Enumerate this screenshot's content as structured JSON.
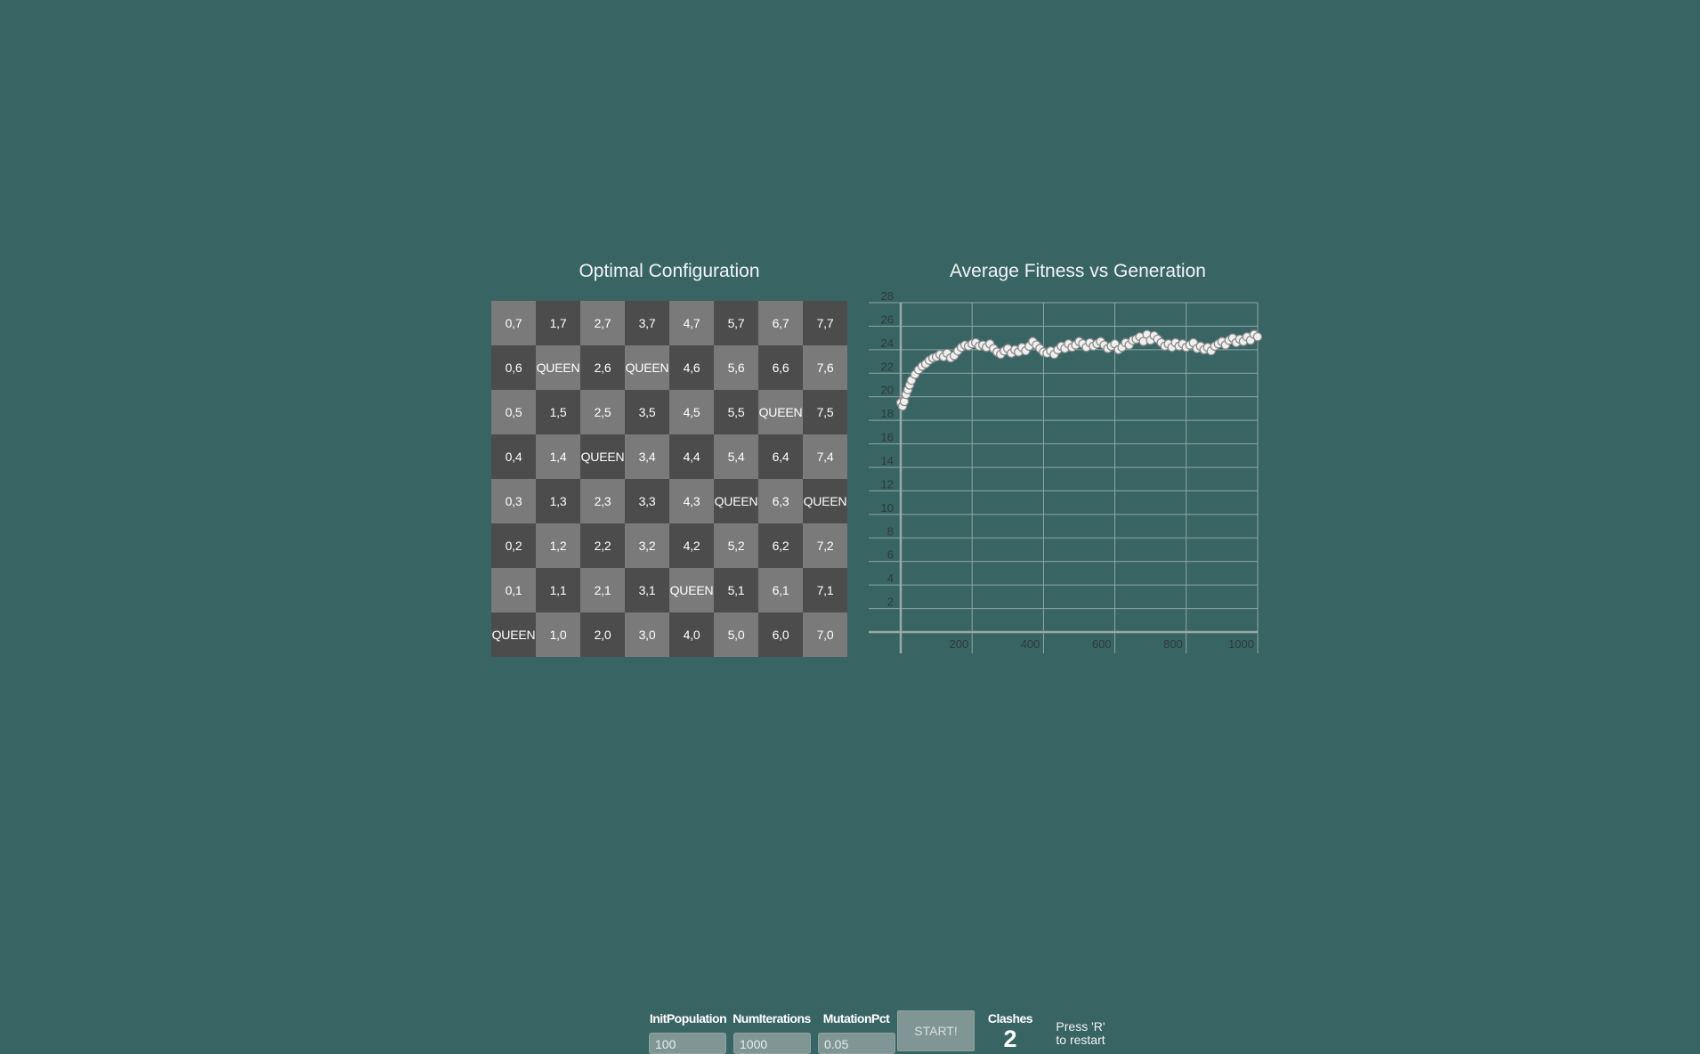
{
  "board": {
    "title": "Optimal Configuration",
    "rows": [
      [
        "0,7",
        "1,7",
        "2,7",
        "3,7",
        "4,7",
        "5,7",
        "6,7",
        "7,7"
      ],
      [
        "0,6",
        "QUEEN",
        "2,6",
        "QUEEN",
        "4,6",
        "5,6",
        "6,6",
        "7,6"
      ],
      [
        "0,5",
        "1,5",
        "2,5",
        "3,5",
        "4,5",
        "5,5",
        "QUEEN",
        "7,5"
      ],
      [
        "0,4",
        "1,4",
        "QUEEN",
        "3,4",
        "4,4",
        "5,4",
        "6,4",
        "7,4"
      ],
      [
        "0,3",
        "1,3",
        "2,3",
        "3,3",
        "4,3",
        "QUEEN",
        "6,3",
        "QUEEN"
      ],
      [
        "0,2",
        "1,2",
        "2,2",
        "3,2",
        "4,2",
        "5,2",
        "6,2",
        "7,2"
      ],
      [
        "0,1",
        "1,1",
        "2,1",
        "3,1",
        "QUEEN",
        "5,1",
        "6,1",
        "7,1"
      ],
      [
        "QUEEN",
        "1,0",
        "2,0",
        "3,0",
        "4,0",
        "5,0",
        "6,0",
        "7,0"
      ]
    ]
  },
  "colors": {
    "background": "#386463",
    "light_square": "#7a7a7a",
    "dark_square": "#4c4c4c",
    "marker_fill": "#f0f0f0",
    "marker_stroke": "#8a8a8a"
  },
  "chart_data": {
    "type": "scatter",
    "title": "Average Fitness vs Generation",
    "xlabel": "",
    "ylabel": "",
    "xlim": [
      0,
      1000
    ],
    "ylim": [
      0,
      28
    ],
    "xticks": [
      200,
      400,
      600,
      800,
      1000
    ],
    "yticks": [
      2,
      4,
      6,
      8,
      10,
      12,
      14,
      16,
      18,
      20,
      22,
      24,
      26,
      28
    ],
    "grid": true,
    "legend": "none",
    "series": [
      {
        "x": [
          0,
          5,
          10,
          15,
          20,
          25,
          30,
          40,
          50,
          60,
          70,
          80,
          90,
          100,
          110,
          120,
          130,
          140,
          150,
          160,
          170,
          180,
          190,
          200,
          210,
          220,
          230,
          240,
          250,
          260,
          270,
          280,
          290,
          300,
          310,
          320,
          330,
          340,
          350,
          360,
          370,
          380,
          390,
          400,
          410,
          420,
          430,
          440,
          450,
          460,
          470,
          480,
          490,
          500,
          510,
          520,
          530,
          540,
          550,
          560,
          570,
          580,
          590,
          600,
          610,
          620,
          630,
          640,
          650,
          660,
          670,
          680,
          690,
          700,
          710,
          720,
          730,
          740,
          750,
          760,
          770,
          780,
          790,
          800,
          810,
          820,
          830,
          840,
          850,
          860,
          870,
          880,
          890,
          900,
          910,
          920,
          930,
          940,
          950,
          960,
          970,
          980,
          990,
          1000
        ],
        "values": [
          19.5,
          19.2,
          19.6,
          20.2,
          20.6,
          21.0,
          21.4,
          21.9,
          22.3,
          22.6,
          22.8,
          23.1,
          23.3,
          23.4,
          23.6,
          23.4,
          23.7,
          23.3,
          23.5,
          23.9,
          24.2,
          24.4,
          24.3,
          24.5,
          24.6,
          24.3,
          24.4,
          24.2,
          24.5,
          24.1,
          23.8,
          23.6,
          23.9,
          24.1,
          23.7,
          24.0,
          23.8,
          24.2,
          23.9,
          24.3,
          24.7,
          24.4,
          24.1,
          23.8,
          23.7,
          23.9,
          23.6,
          24.0,
          24.3,
          24.1,
          24.5,
          24.2,
          24.4,
          24.7,
          24.5,
          24.2,
          24.6,
          24.3,
          24.5,
          24.7,
          24.4,
          24.1,
          24.3,
          24.5,
          24.0,
          24.2,
          24.6,
          24.4,
          24.8,
          24.9,
          25.1,
          24.7,
          25.3,
          24.8,
          25.2,
          24.9,
          24.6,
          24.3,
          24.5,
          24.2,
          24.6,
          24.3,
          24.5,
          24.2,
          24.4,
          24.6,
          24.1,
          24.3,
          24.0,
          24.2,
          23.9,
          24.3,
          24.5,
          24.7,
          24.4,
          24.8,
          25.0,
          24.6,
          24.9,
          24.7,
          25.1,
          24.8,
          25.3,
          25.1
        ]
      }
    ]
  },
  "controls": {
    "init_population_label": "InitPopulation",
    "init_population_value": "100",
    "num_iterations_label": "NumIterations",
    "num_iterations_value": "1000",
    "mutation_pct_label": "MutationPct",
    "mutation_pct_value": "0.05",
    "start_label": "START!",
    "clashes_label": "Clashes",
    "clashes_value": "2",
    "restart_hint_line1": "Press 'R'",
    "restart_hint_line2": "to restart"
  }
}
